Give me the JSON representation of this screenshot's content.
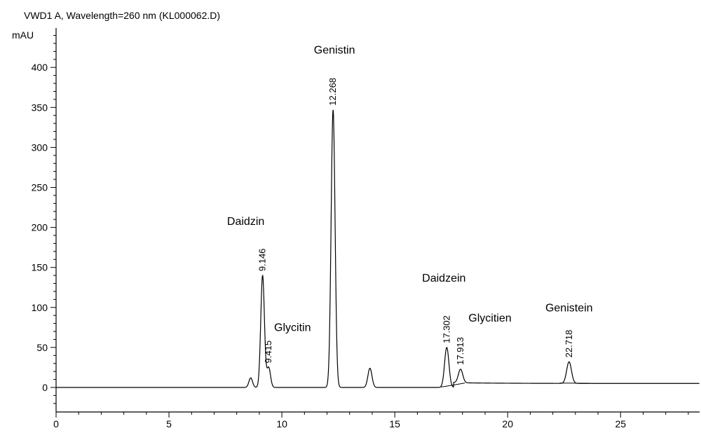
{
  "chart_data": {
    "type": "line",
    "title": "VWD1 A, Wavelength=260 nm (KL000062.D)",
    "xlabel": "",
    "ylabel": "mAU",
    "xlim": [
      0,
      28.5
    ],
    "ylim": [
      -30,
      455
    ],
    "x_ticks": [
      0,
      5,
      10,
      15,
      20,
      25
    ],
    "y_ticks": [
      0,
      50,
      100,
      150,
      200,
      250,
      300,
      350,
      400
    ],
    "grid": false,
    "peaks": [
      {
        "rt": 8.62,
        "height": 12,
        "label": "",
        "compound": ""
      },
      {
        "rt": 9.146,
        "height": 140,
        "label": "9.146",
        "compound": "Daidzin"
      },
      {
        "rt": 9.415,
        "height": 25,
        "label": "9.415",
        "compound": "Glycitin"
      },
      {
        "rt": 12.268,
        "height": 347,
        "label": "12.268",
        "compound": "Genistin"
      },
      {
        "rt": 13.9,
        "height": 24,
        "label": "",
        "compound": ""
      },
      {
        "rt": 17.302,
        "height": 50,
        "label": "17.302",
        "compound": "Daidzein"
      },
      {
        "rt": 17.913,
        "height": 17,
        "label": "17.913",
        "compound": "Glycitien"
      },
      {
        "rt": 22.718,
        "height": 27,
        "label": "22.718",
        "compound": "Genistein"
      }
    ]
  }
}
